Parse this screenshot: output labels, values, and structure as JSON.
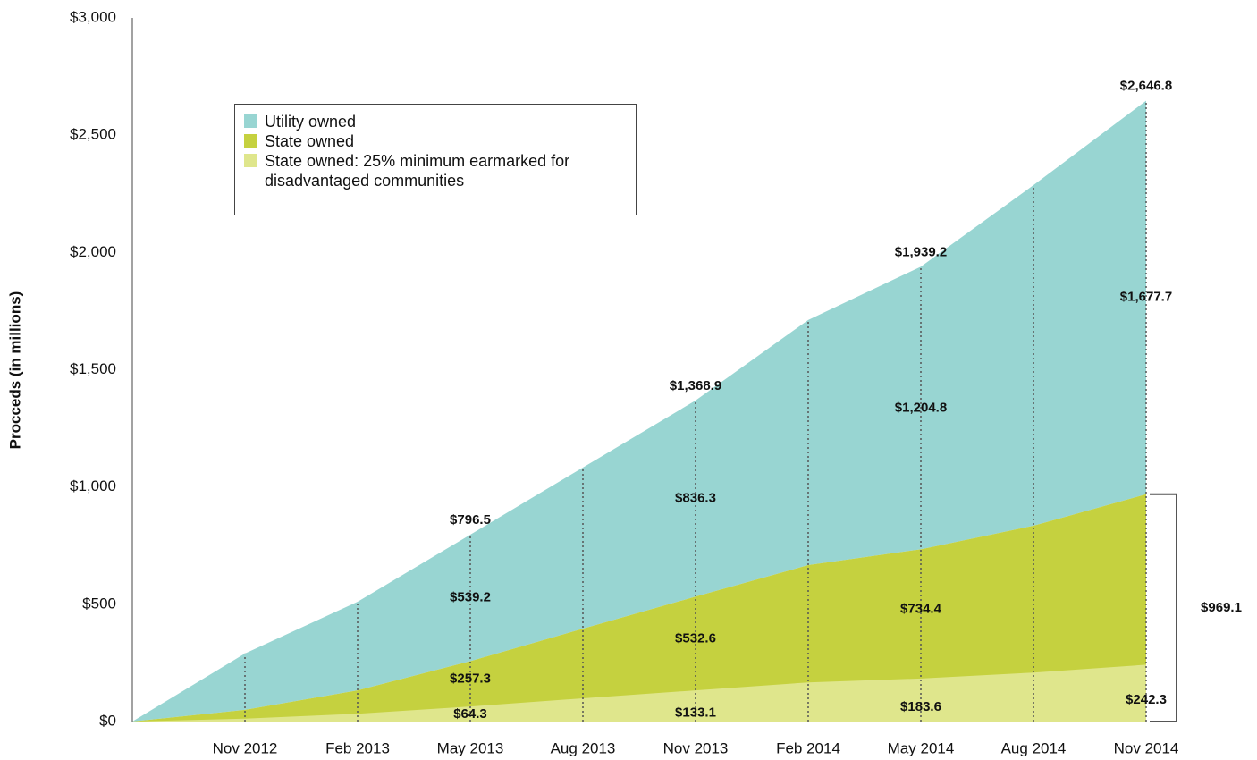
{
  "chart_data": {
    "type": "area",
    "ylabel": "Procceds (in millions)",
    "categories": [
      null,
      "Nov 2012",
      "Feb 2013",
      "May 2013",
      "Aug 2013",
      "Nov 2013",
      "Feb 2014",
      "May 2014",
      "Aug 2014",
      "Nov 2014"
    ],
    "series": [
      {
        "name": "Utility owned",
        "color": "#98d5d2",
        "values": [
          0,
          240,
          378,
          539.2,
          687,
          836.3,
          1045,
          1204.8,
          1452,
          1677.7
        ],
        "value_labels": [
          null,
          null,
          null,
          "$539.2",
          null,
          "$836.3",
          null,
          "$1,204.8",
          null,
          "$1,677.7"
        ]
      },
      {
        "name": "State owned",
        "color": "#c5d13f",
        "values": [
          0,
          50,
          133,
          257.3,
          396,
          532.6,
          667,
          734.4,
          835,
          969.1
        ],
        "value_labels": [
          null,
          null,
          null,
          "$257.3",
          null,
          "$532.6",
          null,
          "$734.4",
          null,
          "$969.1"
        ]
      },
      {
        "name": "State owned: 25% minimum earmarked for disadvantaged communities",
        "color": "#dfe68c",
        "values": [
          0,
          12.5,
          33.3,
          64.3,
          99,
          133.1,
          166.8,
          183.6,
          208.8,
          242.3
        ],
        "value_labels": [
          null,
          null,
          null,
          "$64.3",
          null,
          "$133.1",
          null,
          "$183.6",
          null,
          "$242.3"
        ]
      }
    ],
    "totals": [
      null,
      null,
      null,
      796.5,
      null,
      1368.9,
      null,
      1939.2,
      null,
      2646.8
    ],
    "total_labels": [
      null,
      null,
      null,
      "$796.5",
      null,
      "$1,368.9",
      null,
      "$1,939.2",
      null,
      "$2,646.8"
    ],
    "ylim": [
      0,
      3000
    ],
    "yticks": [
      {
        "value": 0,
        "label": "$0"
      },
      {
        "value": 500,
        "label": "$500"
      },
      {
        "value": 1000,
        "label": "$1,000"
      },
      {
        "value": 1500,
        "label": "$1,500"
      },
      {
        "value": 2000,
        "label": "$2,000"
      },
      {
        "value": 2500,
        "label": "$2,500"
      },
      {
        "value": 3000,
        "label": "$3,000"
      }
    ]
  }
}
